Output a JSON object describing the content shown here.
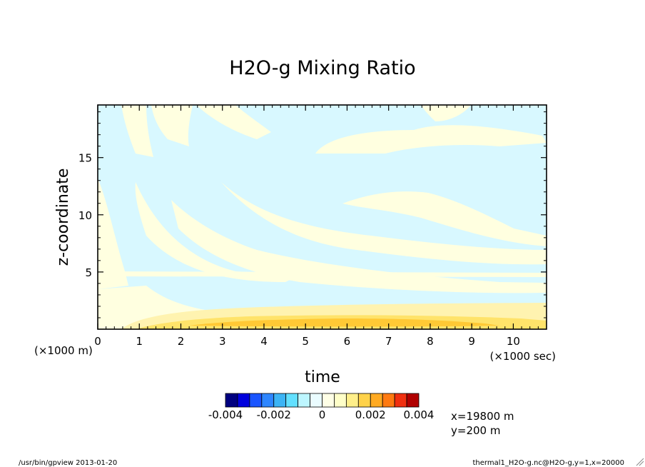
{
  "chart_data": {
    "type": "heatmap",
    "title": "H2O-g Mixing Ratio",
    "xlabel": "time",
    "ylabel": "z-coordinate",
    "x_unit": "(×1000 sec)",
    "y_unit": "(×1000 m)",
    "xlim": [
      0,
      10.8
    ],
    "ylim": [
      0,
      19.6
    ],
    "x_ticks": [
      "0",
      "1",
      "2",
      "3",
      "4",
      "5",
      "6",
      "7",
      "8",
      "9",
      "10"
    ],
    "y_ticks": [
      "5",
      "10",
      "15"
    ],
    "colorbar": {
      "tick_labels": [
        "-0.004",
        "-0.002",
        "0",
        "0.002",
        "0.004"
      ],
      "range": [
        -0.004,
        0.004
      ],
      "colors": [
        "#000080",
        "#0000dd",
        "#1a55ff",
        "#2e86ff",
        "#3cb4f5",
        "#62e0ff",
        "#bdf6ff",
        "#eafcff",
        "#ffffe6",
        "#ffffc8",
        "#ffef8a",
        "#ffd24a",
        "#ffaa22",
        "#ff7a11",
        "#f03010",
        "#b00000"
      ]
    },
    "field_levels": {
      "background": "#d8f8ff",
      "slightly_positive": "#ffffe0",
      "positive_1": "#fff3b0",
      "positive_2": "#ffe36a",
      "positive_3": "#ffc935"
    },
    "slice_info": [
      "x=19800 m",
      "y=200 m"
    ]
  },
  "footer": {
    "left": "/usr/bin/gpview  2013-01-20",
    "right": "thermal1_H2O-g.nc@H2O-g,y=1,x=20000"
  }
}
